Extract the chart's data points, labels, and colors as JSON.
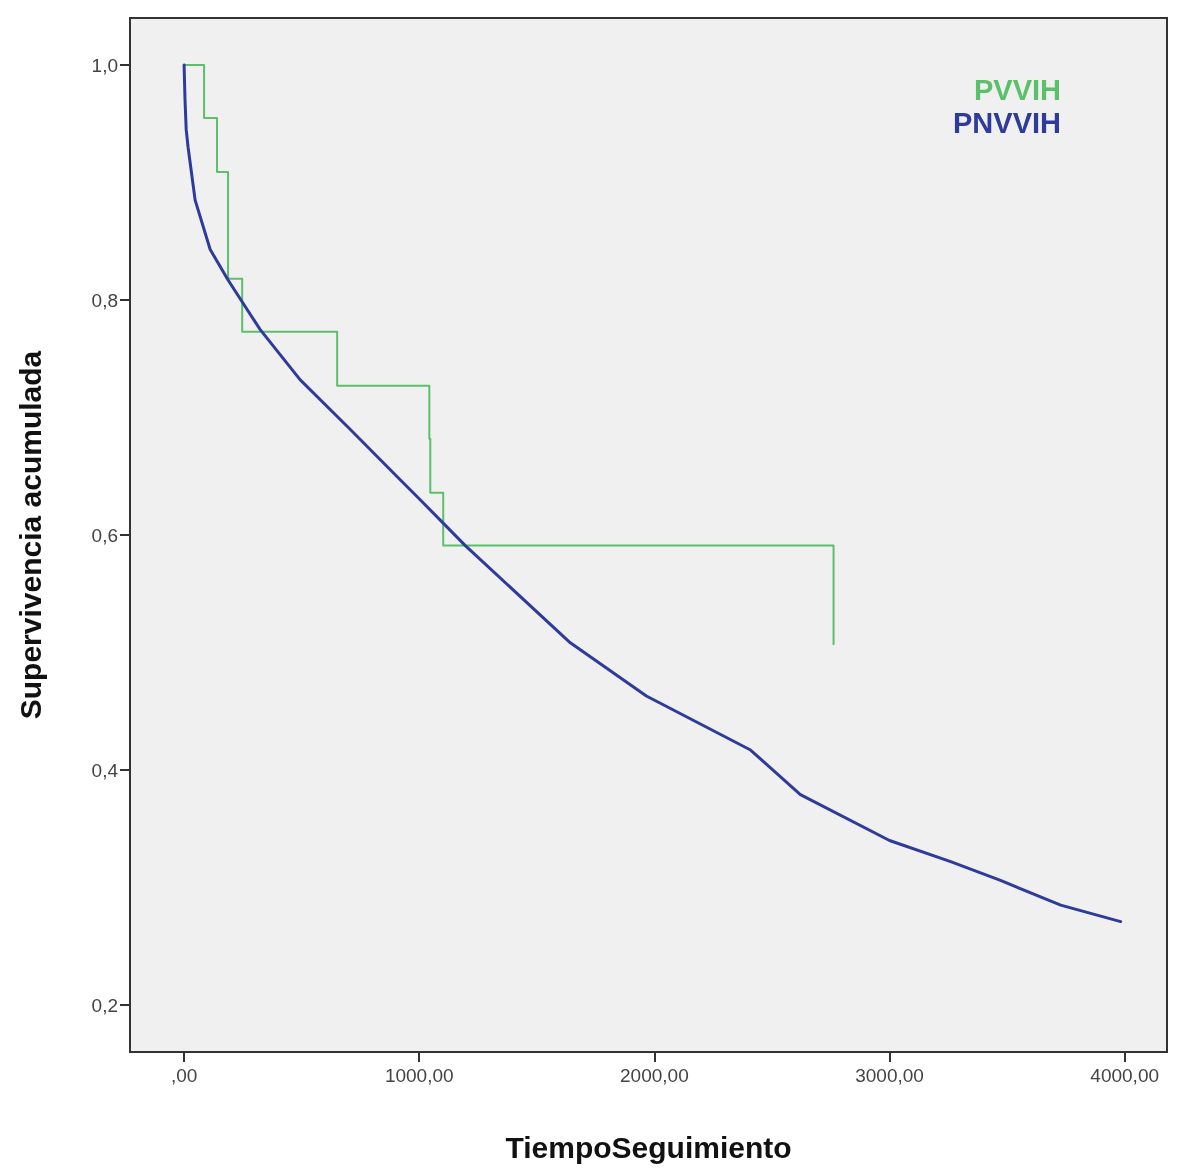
{
  "chart_data": {
    "type": "step",
    "xlabel": "TiempoSeguimiento",
    "ylabel": "Supervivencia acumulada",
    "xlim": [
      -230,
      4180
    ],
    "ylim": [
      0.16,
      1.04
    ],
    "xticks": [
      {
        "value": 0,
        "label": ",00"
      },
      {
        "value": 1000,
        "label": "1000,00"
      },
      {
        "value": 2000,
        "label": "2000,00"
      },
      {
        "value": 3000,
        "label": "3000,00"
      },
      {
        "value": 4000,
        "label": "4000,00"
      }
    ],
    "yticks": [
      {
        "value": 0.2,
        "label": "0,2"
      },
      {
        "value": 0.4,
        "label": "0,4"
      },
      {
        "value": 0.6,
        "label": "0,6"
      },
      {
        "value": 0.8,
        "label": "0,8"
      },
      {
        "value": 1.0,
        "label": "1,0"
      }
    ],
    "grid": false,
    "legend": "top right",
    "marker": "none",
    "line_style": "solid",
    "series": [
      {
        "name": "PVVIH",
        "color": "#5cbf6a",
        "x": [
          0,
          85,
          140,
          187,
          247,
          651,
          1043,
          1047,
          1102,
          2762
        ],
        "values": [
          1.0,
          0.955,
          0.909,
          0.818,
          0.773,
          0.727,
          0.682,
          0.636,
          0.591,
          0.507
        ]
      },
      {
        "name": "PNVVIH",
        "type": "line",
        "color": "#2e3b9a",
        "x": [
          0,
          4,
          9,
          17,
          47,
          111,
          187,
          323,
          494,
          706,
          919,
          1004,
          1196,
          1638,
          1966,
          2409,
          2621,
          3000,
          3260,
          3472,
          3728,
          3983
        ],
        "values": [
          1.0,
          0.97,
          0.945,
          0.93,
          0.885,
          0.843,
          0.817,
          0.775,
          0.732,
          0.69,
          0.647,
          0.63,
          0.591,
          0.509,
          0.463,
          0.417,
          0.379,
          0.34,
          0.322,
          0.306,
          0.285,
          0.271
        ]
      }
    ]
  }
}
